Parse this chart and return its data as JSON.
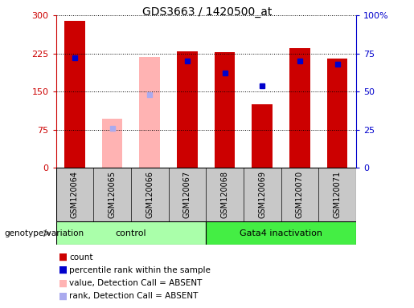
{
  "title": "GDS3663 / 1420500_at",
  "samples": [
    "GSM120064",
    "GSM120065",
    "GSM120066",
    "GSM120067",
    "GSM120068",
    "GSM120069",
    "GSM120070",
    "GSM120071"
  ],
  "red_bars": [
    290,
    0,
    0,
    230,
    227,
    125,
    235,
    215
  ],
  "pink_bars": [
    0,
    97,
    218,
    0,
    0,
    0,
    0,
    0
  ],
  "blue_pct": [
    72,
    0,
    0,
    70,
    62,
    54,
    70,
    68
  ],
  "lblue_pct": [
    0,
    26,
    48,
    0,
    0,
    0,
    0,
    0
  ],
  "absent": [
    false,
    true,
    true,
    false,
    false,
    false,
    false,
    false
  ],
  "ylim_left": [
    0,
    300
  ],
  "ylim_right": [
    0,
    100
  ],
  "yticks_left": [
    0,
    75,
    150,
    225,
    300
  ],
  "yticks_right": [
    0,
    25,
    50,
    75,
    100
  ],
  "ytick_labels_left": [
    "0",
    "75",
    "150",
    "225",
    "300"
  ],
  "ytick_labels_right": [
    "0",
    "25",
    "50",
    "75",
    "100%"
  ],
  "left_axis_color": "#cc0000",
  "right_axis_color": "#0000cc",
  "red_bar_color": "#cc0000",
  "pink_bar_color": "#ffb3b3",
  "blue_sq_color": "#0000cc",
  "light_blue_sq_color": "#aaaaee",
  "bar_width": 0.55,
  "control_bg": "#aaffaa",
  "gata4_bg": "#44ee44",
  "sample_box_bg": "#c8c8c8",
  "legend_items": [
    "count",
    "percentile rank within the sample",
    "value, Detection Call = ABSENT",
    "rank, Detection Call = ABSENT"
  ],
  "legend_colors": [
    "#cc0000",
    "#0000cc",
    "#ffb3b3",
    "#aaaaee"
  ]
}
